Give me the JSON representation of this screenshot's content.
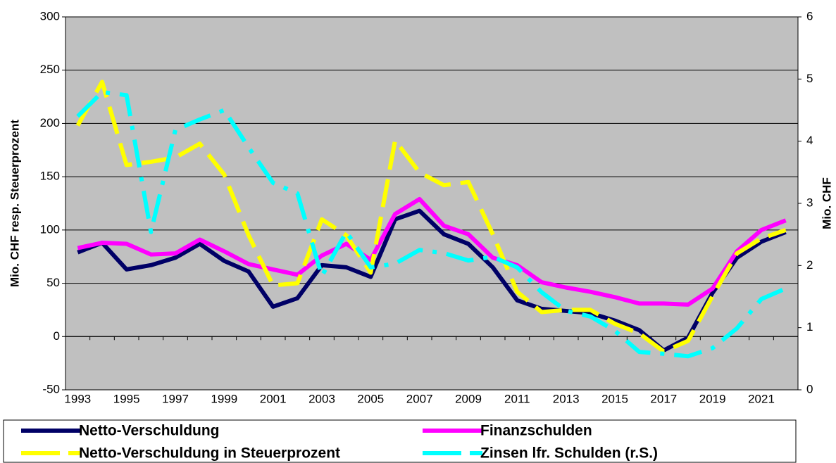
{
  "chart_data": {
    "type": "line",
    "categories": [
      "1993",
      null,
      "1995",
      null,
      "1997",
      null,
      "1999",
      null,
      "2001",
      null,
      "2003",
      null,
      "2005",
      null,
      "2007",
      null,
      "2009",
      null,
      "2011",
      null,
      "2013",
      null,
      "2015",
      null,
      "2017",
      null,
      "2019",
      null,
      "2021",
      null
    ],
    "y_label": "Mio. CHF resp. Steuerprozent",
    "y2_label": "Mio. CHF",
    "ylim": [
      -50,
      300
    ],
    "yticks": [
      -50,
      0,
      50,
      100,
      150,
      200,
      250,
      300
    ],
    "y2lim": [
      0,
      6
    ],
    "y2ticks": [
      0,
      1,
      2,
      3,
      4,
      5,
      6
    ],
    "grid": true,
    "legend": "bottom",
    "series": [
      {
        "name": "Netto-Verschuldung",
        "color": "#000066",
        "dash": "solid",
        "values": [
          79,
          88,
          63,
          67,
          74,
          87,
          71,
          61,
          28,
          36,
          67,
          65,
          56,
          110,
          118,
          96,
          87,
          65,
          34,
          26,
          24,
          22,
          15,
          6,
          -13,
          -1,
          41,
          74,
          89,
          98
        ]
      },
      {
        "name": "Finanzschulden",
        "color": "#ff00ff",
        "dash": "solid",
        "values": [
          83,
          88,
          87,
          77,
          78,
          91,
          80,
          68,
          63,
          58,
          76,
          87,
          72,
          115,
          129,
          104,
          96,
          74,
          67,
          51,
          46,
          42,
          37,
          31,
          31,
          30,
          45,
          80,
          100,
          109
        ]
      },
      {
        "name": "Netto-Verschuldung in Steuerprozent",
        "color": "#ffff00",
        "dash": "dash",
        "values": [
          198,
          239,
          161,
          164,
          168,
          181,
          152,
          95,
          48,
          50,
          110,
          95,
          60,
          184,
          154,
          142,
          145,
          96,
          42,
          23,
          25,
          25,
          12,
          3,
          -14,
          -4,
          38,
          78,
          92,
          100
        ]
      },
      {
        "name": "Zinsen lfr. Schulden (r.S.)",
        "color": "#00ffff",
        "dash": "dashdot",
        "axis": "y2",
        "values": [
          4.4,
          4.79,
          4.74,
          2.54,
          4.18,
          4.35,
          4.5,
          3.9,
          3.33,
          3.16,
          1.83,
          2.54,
          1.97,
          2.03,
          2.25,
          2.2,
          2.08,
          2.14,
          1.97,
          1.57,
          1.27,
          1.18,
          0.95,
          0.61,
          0.58,
          0.54,
          0.67,
          0.99,
          1.46,
          1.63
        ]
      }
    ]
  }
}
